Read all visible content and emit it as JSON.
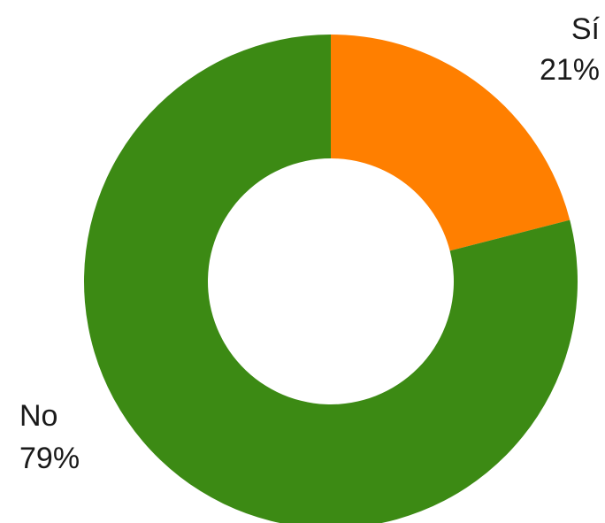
{
  "chart_data": {
    "type": "pie",
    "variant": "donut",
    "slices": [
      {
        "label": "Sí",
        "value": 21,
        "display": "21%",
        "color": "#ff7f00"
      },
      {
        "label": "No",
        "value": 79,
        "display": "79%",
        "color": "#3c8a14"
      }
    ],
    "start": "top",
    "direction": "clockwise",
    "legend": "none"
  }
}
